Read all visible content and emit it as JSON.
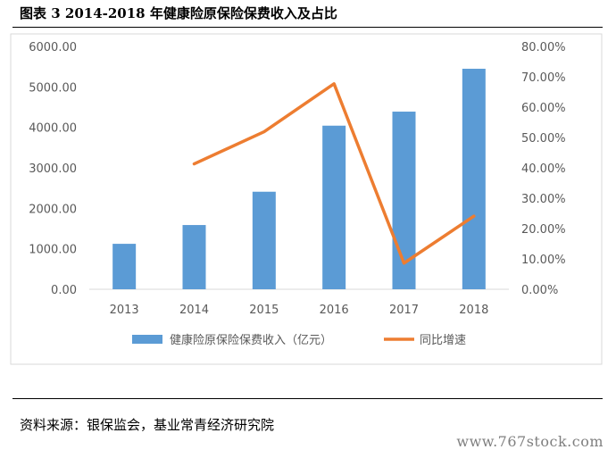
{
  "header": {
    "title": "图表 3 2014-2018 年健康险原保险保费收入及占比"
  },
  "footer": {
    "source": "资料来源：银保监会，基业常青经济研究院",
    "watermark": "www.767stock.com"
  },
  "chart_data": {
    "type": "bar",
    "categories": [
      "2013",
      "2014",
      "2015",
      "2016",
      "2017",
      "2018"
    ],
    "series": [
      {
        "name": "健康险原保险保费收入（亿元）",
        "type": "bar",
        "axis": "left",
        "color": "#5b9bd5",
        "values": [
          1123,
          1587,
          2410,
          4042,
          4389,
          5448
        ]
      },
      {
        "name": "同比增速",
        "type": "line",
        "axis": "right",
        "color": "#ed7d31",
        "values": [
          null,
          0.413,
          0.519,
          0.677,
          0.086,
          0.241
        ]
      }
    ],
    "left_axis": {
      "ylim": [
        0,
        6000
      ],
      "ticks": [
        "0.00",
        "1000.00",
        "2000.00",
        "3000.00",
        "4000.00",
        "5000.00",
        "6000.00"
      ]
    },
    "right_axis": {
      "ylim": [
        0,
        0.8
      ],
      "ticks": [
        "0.00%",
        "10.00%",
        "20.00%",
        "30.00%",
        "40.00%",
        "50.00%",
        "60.00%",
        "70.00%",
        "80.00%"
      ]
    },
    "legend": "bottom",
    "grid": false
  }
}
